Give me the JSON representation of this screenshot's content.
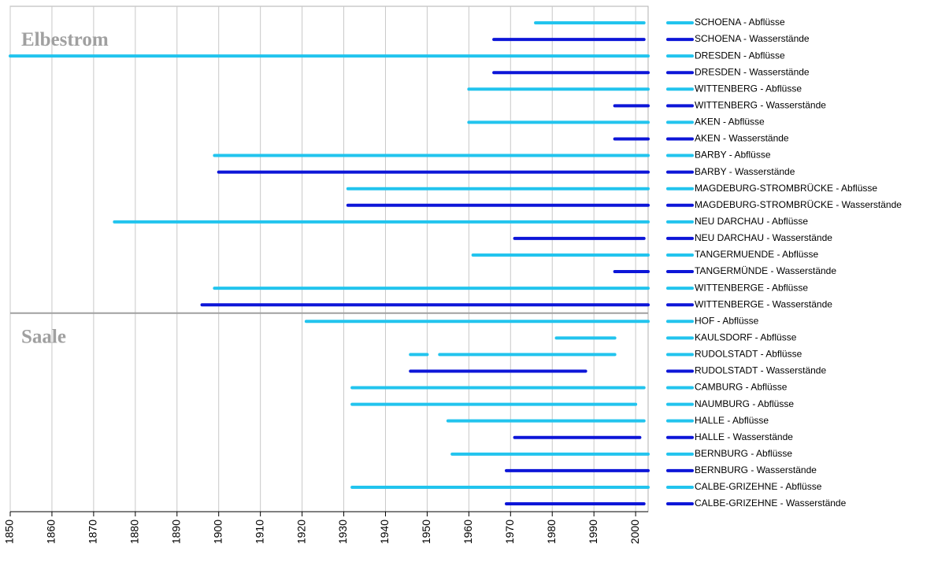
{
  "chart_data": {
    "type": "range",
    "xlim": [
      1850,
      2003
    ],
    "xticks": [
      1850,
      1860,
      1870,
      1880,
      1890,
      1900,
      1910,
      1920,
      1930,
      1940,
      1950,
      1960,
      1970,
      1980,
      1990,
      2000
    ],
    "grid": true,
    "groups": [
      {
        "name": "Elbestrom",
        "rows": [
          {
            "label": "SCHOENA - Abflüsse",
            "color": "#22c4ee",
            "ranges": [
              [
                1976,
                2002
              ]
            ]
          },
          {
            "label": "SCHOENA - Wasserstände",
            "color": "#0d16d8",
            "ranges": [
              [
                1966,
                2002
              ]
            ]
          },
          {
            "label": "DRESDEN - Abflüsse",
            "color": "#22c4ee",
            "ranges": [
              [
                1850,
                2003
              ]
            ]
          },
          {
            "label": "DRESDEN - Wasserstände",
            "color": "#0d16d8",
            "ranges": [
              [
                1966,
                2003
              ]
            ]
          },
          {
            "label": "WITTENBERG - Abflüsse",
            "color": "#22c4ee",
            "ranges": [
              [
                1960,
                2003
              ]
            ]
          },
          {
            "label": "WITTENBERG - Wasserstände",
            "color": "#0d16d8",
            "ranges": [
              [
                1995,
                2003
              ]
            ]
          },
          {
            "label": "AKEN - Abflüsse",
            "color": "#22c4ee",
            "ranges": [
              [
                1960,
                2003
              ]
            ]
          },
          {
            "label": "AKEN - Wasserstände",
            "color": "#0d16d8",
            "ranges": [
              [
                1995,
                2003
              ]
            ]
          },
          {
            "label": "BARBY - Abflüsse",
            "color": "#22c4ee",
            "ranges": [
              [
                1899,
                2003
              ]
            ]
          },
          {
            "label": "BARBY - Wasserstände",
            "color": "#0d16d8",
            "ranges": [
              [
                1900,
                2003
              ]
            ]
          },
          {
            "label": "MAGDEBURG-STROMBRÜCKE - Abflüsse",
            "color": "#22c4ee",
            "ranges": [
              [
                1931,
                2003
              ]
            ]
          },
          {
            "label": "MAGDEBURG-STROMBRÜCKE - Wasserstände",
            "color": "#0d16d8",
            "ranges": [
              [
                1931,
                2003
              ]
            ]
          },
          {
            "label": "NEU DARCHAU - Abflüsse",
            "color": "#22c4ee",
            "ranges": [
              [
                1875,
                2003
              ]
            ]
          },
          {
            "label": "NEU DARCHAU - Wasserstände",
            "color": "#0d16d8",
            "ranges": [
              [
                1971,
                2002
              ]
            ]
          },
          {
            "label": "TANGERMUENDE - Abflüsse",
            "color": "#22c4ee",
            "ranges": [
              [
                1961,
                2003
              ]
            ]
          },
          {
            "label": "TANGERMÜNDE - Wasserstände",
            "color": "#0d16d8",
            "ranges": [
              [
                1995,
                2003
              ]
            ]
          },
          {
            "label": "WITTENBERGE - Abflüsse",
            "color": "#22c4ee",
            "ranges": [
              [
                1899,
                2003
              ]
            ]
          },
          {
            "label": "WITTENBERGE - Wasserstände",
            "color": "#0d16d8",
            "ranges": [
              [
                1896,
                2003
              ]
            ]
          }
        ]
      },
      {
        "name": "Saale",
        "rows": [
          {
            "label": "HOF - Abflüsse",
            "color": "#22c4ee",
            "ranges": [
              [
                1921,
                2003
              ]
            ]
          },
          {
            "label": "KAULSDORF - Abflüsse",
            "color": "#22c4ee",
            "ranges": [
              [
                1981,
                1995
              ]
            ]
          },
          {
            "label": "RUDOLSTADT - Abflüsse",
            "color": "#22c4ee",
            "ranges": [
              [
                1946,
                1950
              ],
              [
                1953,
                1995
              ]
            ]
          },
          {
            "label": "RUDOLSTADT - Wasserstände",
            "color": "#0d16d8",
            "ranges": [
              [
                1946,
                1988
              ]
            ]
          },
          {
            "label": "CAMBURG - Abflüsse",
            "color": "#22c4ee",
            "ranges": [
              [
                1932,
                2002
              ]
            ]
          },
          {
            "label": "NAUMBURG - Abflüsse",
            "color": "#22c4ee",
            "ranges": [
              [
                1932,
                2000
              ]
            ]
          },
          {
            "label": "HALLE - Abflüsse",
            "color": "#22c4ee",
            "ranges": [
              [
                1955,
                2002
              ]
            ]
          },
          {
            "label": "HALLE - Wasserstände",
            "color": "#0d16d8",
            "ranges": [
              [
                1971,
                2001
              ]
            ]
          },
          {
            "label": "BERNBURG - Abflüsse",
            "color": "#22c4ee",
            "ranges": [
              [
                1956,
                2003
              ]
            ]
          },
          {
            "label": "BERNBURG - Wasserstände",
            "color": "#0d16d8",
            "ranges": [
              [
                1969,
                2003
              ]
            ]
          },
          {
            "label": "CALBE-GRIZEHNE - Abflüsse",
            "color": "#22c4ee",
            "ranges": [
              [
                1932,
                2003
              ]
            ]
          },
          {
            "label": "CALBE-GRIZEHNE - Wasserstände",
            "color": "#0d16d8",
            "ranges": [
              [
                1969,
                2002
              ]
            ]
          }
        ]
      }
    ]
  }
}
